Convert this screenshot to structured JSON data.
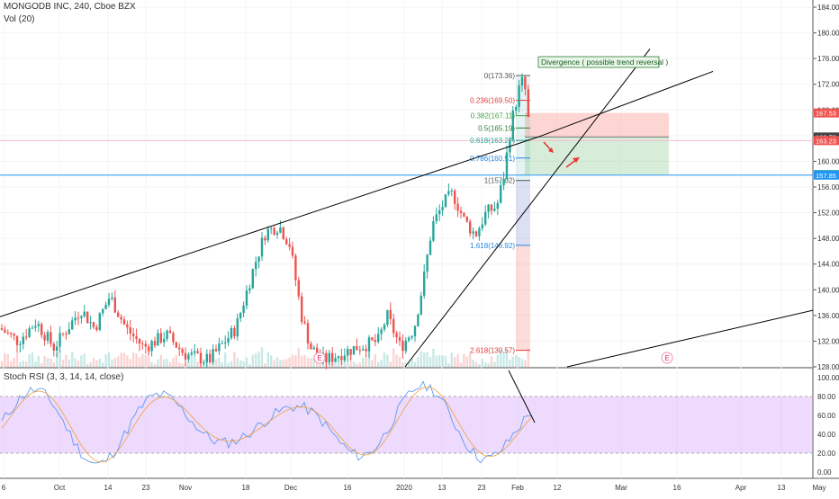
{
  "header": {
    "symbol_line": "MONGODB INC, 240, Cboe BZX",
    "volume_label": "Vol (20)",
    "oscillator_label": "Stoch RSI (3, 3, 14, 14, close)"
  },
  "annotation": "Divergence ( possible trend reversal )",
  "colors": {
    "up": "#26a69a",
    "down": "#ef5350",
    "trendline": "#000000",
    "horizontal_line": "#2196f3",
    "stoch_band": "#d6a8f5",
    "stoch_k": "#4f8ff0",
    "stoch_d": "#f0a040"
  },
  "price_axis": {
    "min": 128,
    "max": 184,
    "ticks": [
      "184.00",
      "180.00",
      "176.00",
      "172.00",
      "168.00",
      "164.00",
      "160.00",
      "156.00",
      "152.00",
      "148.00",
      "144.00",
      "140.00",
      "136.00",
      "132.00",
      "128.00"
    ]
  },
  "price_badges": [
    {
      "text": "167.53",
      "value": 167.53,
      "color": "#ef5350"
    },
    {
      "text": "163.79",
      "value": 163.79,
      "color": "#444444"
    },
    {
      "text": "163.23",
      "value": 163.23,
      "color": "#ef5350"
    },
    {
      "text": "157.94",
      "value": 157.94,
      "color": "#26a69a"
    },
    {
      "text": "157.85",
      "value": 157.85,
      "color": "#2196f3"
    }
  ],
  "fibonacci": [
    {
      "text": "0(173.36)",
      "value": 173.36,
      "color": "#555555"
    },
    {
      "text": "0.236(169.50)",
      "value": 169.5,
      "color": "#e53935"
    },
    {
      "text": "0.382(167.11)",
      "value": 167.11,
      "color": "#43a047"
    },
    {
      "text": "0.5(165.19)",
      "value": 165.19,
      "color": "#2e7d32"
    },
    {
      "text": "0.618(163.27)",
      "value": 163.27,
      "color": "#26a69a"
    },
    {
      "text": "0.786(160.51)",
      "value": 160.51,
      "color": "#1e88e5"
    },
    {
      "text": "1(157.02)",
      "value": 157.02,
      "color": "#555555"
    },
    {
      "text": "1.618(146.92)",
      "value": 146.92,
      "color": "#1e88e5"
    },
    {
      "text": "2.618(130.57)",
      "value": 130.57,
      "color": "#e53935"
    }
  ],
  "stoch_axis": {
    "ticks": [
      "100.00",
      "80.00",
      "60.00",
      "40.00",
      "20.00",
      "0.00"
    ]
  },
  "time_axis": {
    "labels": [
      "6",
      "Oct",
      "14",
      "23",
      "Nov",
      "18",
      "Dec",
      "16",
      "2020",
      "13",
      "23",
      "Feb",
      "12",
      "Mar",
      "16",
      "Apr",
      "13",
      "May"
    ]
  },
  "earnings_markers": [
    "E",
    "E"
  ],
  "chart_data": {
    "type": "candlestick",
    "title": "MONGODB INC, 240, Cboe BZX",
    "y_range": [
      128,
      184
    ],
    "key_candles": [
      {
        "label": "left edge",
        "low": 130,
        "high": 137
      },
      {
        "label": "Oct high",
        "low": 134,
        "high": 140.5
      },
      {
        "label": "Nov high",
        "low": 147,
        "high": 151
      },
      {
        "label": "Dec low",
        "low": 128,
        "high": 140
      },
      {
        "label": "Jan high",
        "low": 150,
        "high": 155.5
      },
      {
        "label": "Feb peak",
        "low": 157,
        "high": 173.4
      },
      {
        "label": "last",
        "low": 163,
        "high": 172.5
      }
    ],
    "horizontal_line": 157.85,
    "trade_box": {
      "entry": 163.79,
      "stop": 167.53,
      "target": 157.94
    },
    "stoch_rsi": {
      "range": [
        0,
        100
      ],
      "band": [
        20,
        80
      ]
    }
  }
}
